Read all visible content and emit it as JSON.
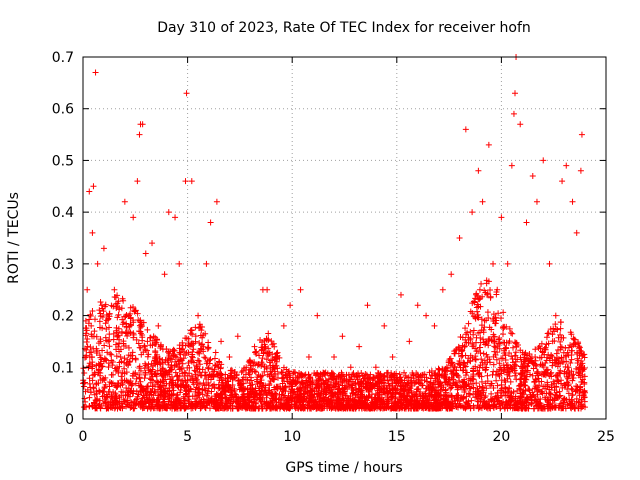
{
  "chart_data": {
    "type": "scatter",
    "title": "Day 310 of 2023, Rate Of TEC Index for receiver hofn",
    "xlabel": "GPS time / hours",
    "ylabel": "ROTI / TECUs",
    "xlim": [
      0,
      25
    ],
    "ylim": [
      0,
      0.7
    ],
    "x_ticks": [
      0,
      5,
      10,
      15,
      20,
      25
    ],
    "x_tick_labels": [
      "0",
      "5",
      "10",
      "15",
      "20",
      "25"
    ],
    "y_ticks": [
      0,
      0.1,
      0.2,
      0.3,
      0.4,
      0.5,
      0.6,
      0.7
    ],
    "y_tick_labels": [
      "0",
      "0.1",
      "0.2",
      "0.3",
      "0.4",
      "0.5",
      "0.6",
      "0.7"
    ],
    "grid": true,
    "marker": "+",
    "series_color": "#ff0000",
    "series": [
      {
        "name": "ROTI",
        "points": [
          [
            0.05,
            0.07
          ],
          [
            0.15,
            0.12
          ],
          [
            0.2,
            0.25
          ],
          [
            0.3,
            0.44
          ],
          [
            0.45,
            0.36
          ],
          [
            0.5,
            0.45
          ],
          [
            0.6,
            0.67
          ],
          [
            0.7,
            0.3
          ],
          [
            0.9,
            0.22
          ],
          [
            1.0,
            0.33
          ],
          [
            1.2,
            0.15
          ],
          [
            1.5,
            0.25
          ],
          [
            1.8,
            0.12
          ],
          [
            2.0,
            0.42
          ],
          [
            2.2,
            0.2
          ],
          [
            2.4,
            0.39
          ],
          [
            2.6,
            0.46
          ],
          [
            2.7,
            0.55
          ],
          [
            2.75,
            0.57
          ],
          [
            2.85,
            0.57
          ],
          [
            3.0,
            0.32
          ],
          [
            3.3,
            0.34
          ],
          [
            3.6,
            0.18
          ],
          [
            3.9,
            0.28
          ],
          [
            4.1,
            0.4
          ],
          [
            4.4,
            0.39
          ],
          [
            4.6,
            0.3
          ],
          [
            4.9,
            0.46
          ],
          [
            4.95,
            0.63
          ],
          [
            5.2,
            0.46
          ],
          [
            5.5,
            0.2
          ],
          [
            5.9,
            0.3
          ],
          [
            6.1,
            0.38
          ],
          [
            6.4,
            0.42
          ],
          [
            6.6,
            0.15
          ],
          [
            7.0,
            0.12
          ],
          [
            7.4,
            0.16
          ],
          [
            7.8,
            0.1
          ],
          [
            8.2,
            0.14
          ],
          [
            8.6,
            0.25
          ],
          [
            8.8,
            0.25
          ],
          [
            9.2,
            0.12
          ],
          [
            9.6,
            0.18
          ],
          [
            9.9,
            0.22
          ],
          [
            10.4,
            0.25
          ],
          [
            10.8,
            0.12
          ],
          [
            11.2,
            0.2
          ],
          [
            11.6,
            0.09
          ],
          [
            12.0,
            0.12
          ],
          [
            12.4,
            0.16
          ],
          [
            12.8,
            0.1
          ],
          [
            13.2,
            0.14
          ],
          [
            13.6,
            0.22
          ],
          [
            14.0,
            0.1
          ],
          [
            14.4,
            0.18
          ],
          [
            14.8,
            0.12
          ],
          [
            15.2,
            0.24
          ],
          [
            15.6,
            0.15
          ],
          [
            16.0,
            0.22
          ],
          [
            16.4,
            0.2
          ],
          [
            16.8,
            0.18
          ],
          [
            17.2,
            0.25
          ],
          [
            17.6,
            0.28
          ],
          [
            18.0,
            0.35
          ],
          [
            18.3,
            0.56
          ],
          [
            18.6,
            0.4
          ],
          [
            18.9,
            0.48
          ],
          [
            19.1,
            0.42
          ],
          [
            19.4,
            0.53
          ],
          [
            19.6,
            0.3
          ],
          [
            19.8,
            0.25
          ],
          [
            20.0,
            0.39
          ],
          [
            20.3,
            0.3
          ],
          [
            20.5,
            0.49
          ],
          [
            20.6,
            0.59
          ],
          [
            20.65,
            0.63
          ],
          [
            20.7,
            0.7
          ],
          [
            20.9,
            0.57
          ],
          [
            21.2,
            0.38
          ],
          [
            21.5,
            0.47
          ],
          [
            21.7,
            0.42
          ],
          [
            22.0,
            0.5
          ],
          [
            22.3,
            0.3
          ],
          [
            22.6,
            0.2
          ],
          [
            22.9,
            0.46
          ],
          [
            23.1,
            0.49
          ],
          [
            23.4,
            0.42
          ],
          [
            23.6,
            0.36
          ],
          [
            23.8,
            0.48
          ],
          [
            23.85,
            0.55
          ],
          [
            23.9,
            0.05
          ]
        ]
      }
    ]
  }
}
